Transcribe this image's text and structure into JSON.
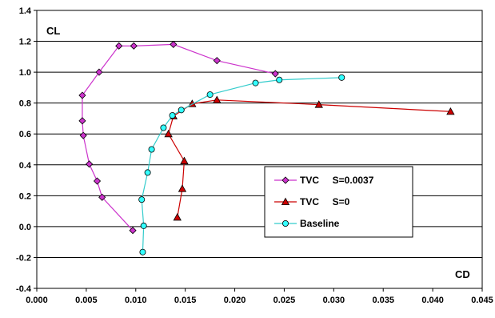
{
  "chart_data": {
    "type": "line",
    "xlabel": "CD",
    "ylabel": "CL",
    "xlim": [
      0.0,
      0.045
    ],
    "ylim": [
      -0.4,
      1.4
    ],
    "x_ticks": [
      "0.000",
      "0.005",
      "0.010",
      "0.015",
      "0.020",
      "0.025",
      "0.030",
      "0.035",
      "0.040",
      "0.045"
    ],
    "y_ticks": [
      "-0.4",
      "-0.2",
      "0.0",
      "0.2",
      "0.4",
      "0.6",
      "0.8",
      "1.0",
      "1.2",
      "1.4"
    ],
    "grid": true,
    "legend_position": "lower-right",
    "series": [
      {
        "name": "TVC     S=0.0037",
        "color": "#cc33cc",
        "fill": "#cc33cc",
        "marker": "diamond",
        "points": [
          [
            0.0097,
            -0.025
          ],
          [
            0.0066,
            0.19
          ],
          [
            0.0061,
            0.295
          ],
          [
            0.0053,
            0.405
          ],
          [
            0.0047,
            0.59
          ],
          [
            0.0046,
            0.685
          ],
          [
            0.0046,
            0.85
          ],
          [
            0.0063,
            1.0
          ],
          [
            0.0083,
            1.17
          ],
          [
            0.0098,
            1.17
          ],
          [
            0.0138,
            1.18
          ],
          [
            0.0182,
            1.075
          ],
          [
            0.0241,
            0.99
          ]
        ]
      },
      {
        "name": "TVC     S=0",
        "color": "#cc0000",
        "fill": "#cc0000",
        "marker": "triangle",
        "points": [
          [
            0.0142,
            0.06
          ],
          [
            0.0147,
            0.245
          ],
          [
            0.0149,
            0.425
          ],
          [
            0.0133,
            0.6
          ],
          [
            0.0138,
            0.715
          ],
          [
            0.0157,
            0.795
          ],
          [
            0.0182,
            0.82
          ],
          [
            0.0285,
            0.79
          ],
          [
            0.0418,
            0.745
          ]
        ]
      },
      {
        "name": "Baseline",
        "color": "#33cccc",
        "fill": "#33ffff",
        "marker": "circle",
        "points": [
          [
            0.0107,
            -0.165
          ],
          [
            0.0108,
            0.005
          ],
          [
            0.0106,
            0.175
          ],
          [
            0.0112,
            0.35
          ],
          [
            0.0116,
            0.5
          ],
          [
            0.0128,
            0.64
          ],
          [
            0.0137,
            0.72
          ],
          [
            0.0146,
            0.755
          ],
          [
            0.0175,
            0.855
          ],
          [
            0.0221,
            0.93
          ],
          [
            0.0245,
            0.95
          ],
          [
            0.0308,
            0.965
          ]
        ]
      }
    ]
  }
}
